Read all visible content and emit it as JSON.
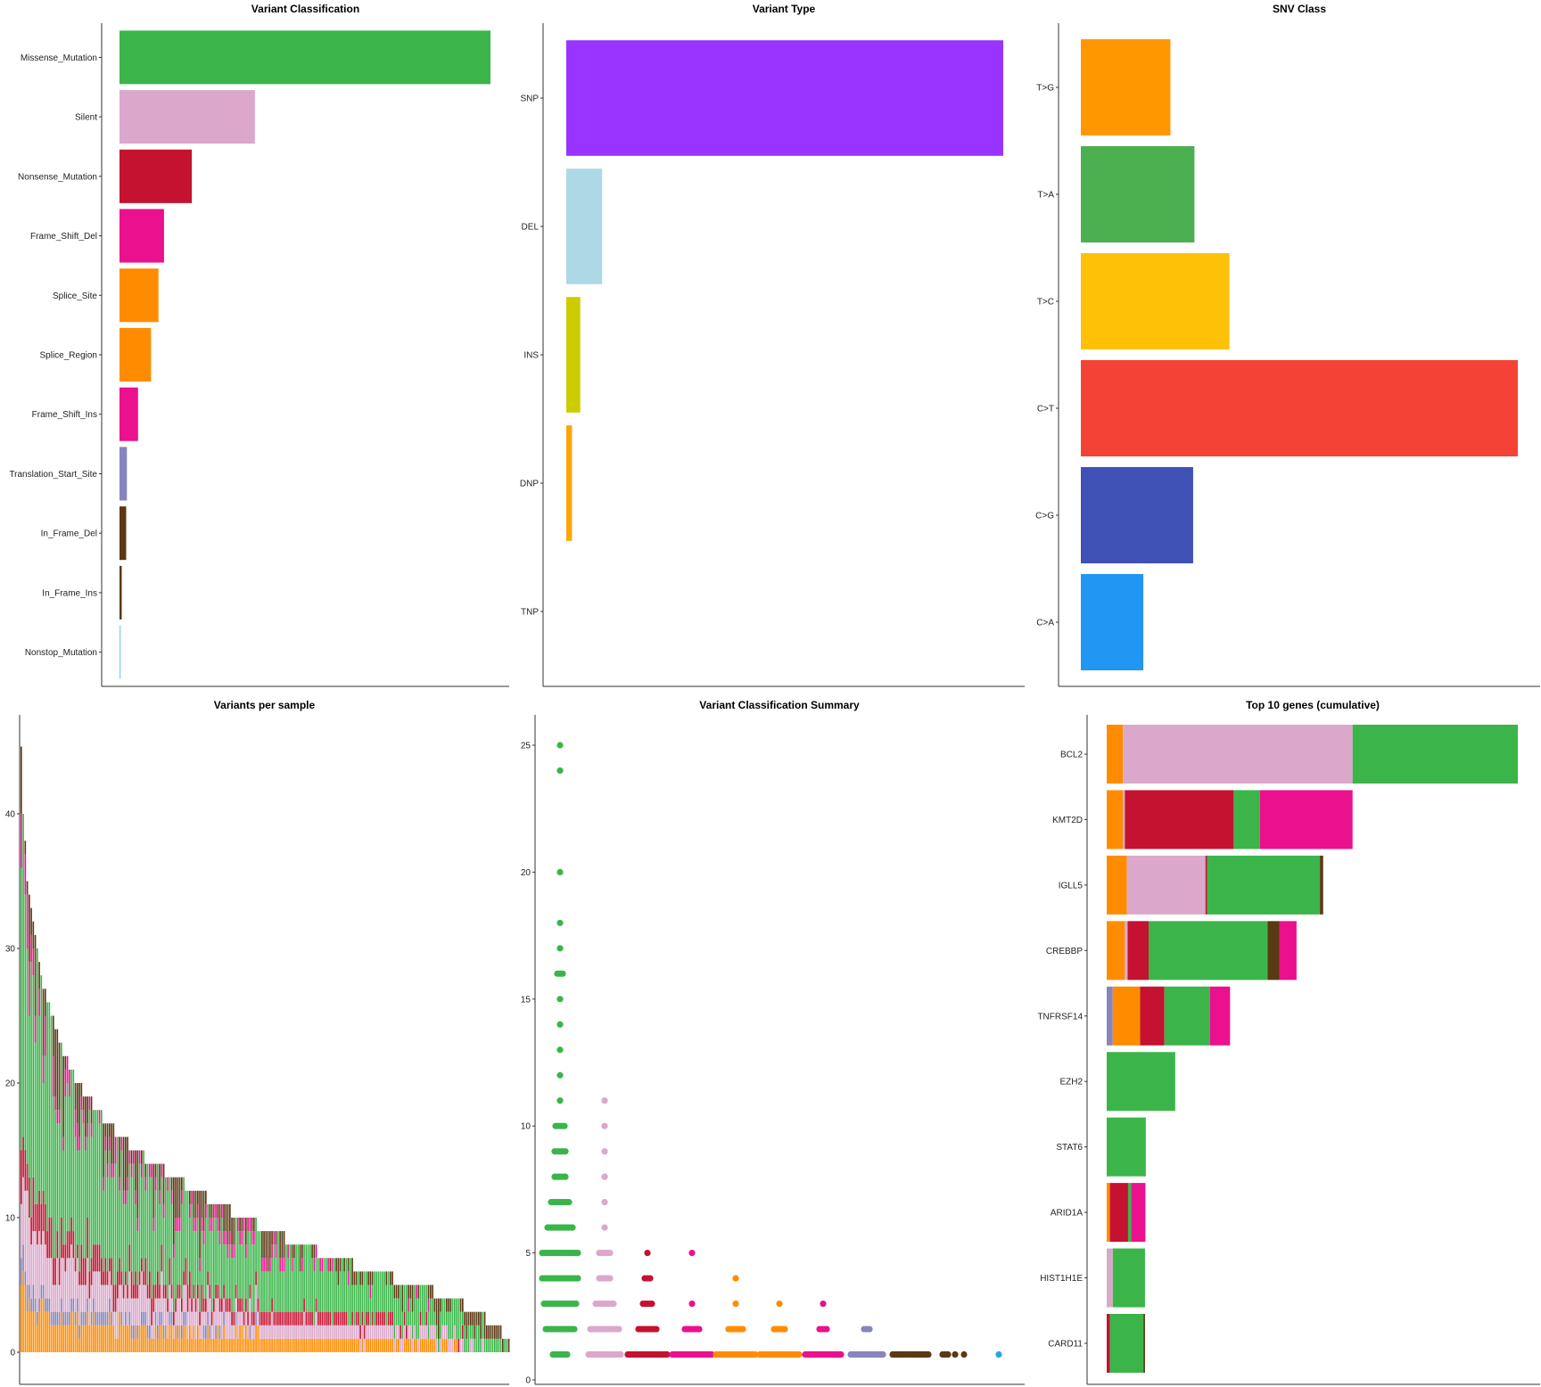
{
  "chart_data": [
    {
      "id": "variant-classification",
      "type": "bar",
      "orientation": "horizontal",
      "title": "Variant Classification",
      "categories": [
        "Missense_Mutation",
        "Silent",
        "Nonsense_Mutation",
        "Frame_Shift_Del",
        "Splice_Site",
        "Splice_Region",
        "Frame_Shift_Ins",
        "Translation_Start_Site",
        "In_Frame_Del",
        "In_Frame_Ins",
        "Nonstop_Mutation"
      ],
      "values": [
        100,
        36.5,
        19.5,
        12,
        10.5,
        8.5,
        5,
        2,
        1.8,
        0.6,
        0.3
      ],
      "colors": [
        "#3BB54A",
        "#DBA8CB",
        "#C41230",
        "#EB108D",
        "#FF8C00",
        "#FF8C00",
        "#EB108D",
        "#8784BE",
        "#5B3913",
        "#5B3913",
        "#7DD2F0"
      ],
      "grid": false
    },
    {
      "id": "variant-type",
      "type": "bar",
      "orientation": "horizontal",
      "title": "Variant Type",
      "categories": [
        "SNP",
        "DEL",
        "INS",
        "DNP",
        "TNP"
      ],
      "values": [
        100,
        8.2,
        3.2,
        1.3,
        0
      ],
      "colors": [
        "#9933FF",
        "#ADD8E6",
        "#CCCC00",
        "#FFA500",
        "#000000"
      ],
      "grid": false
    },
    {
      "id": "snv-class",
      "type": "bar",
      "orientation": "horizontal",
      "title": "SNV Class",
      "categories": [
        "T>G",
        "T>A",
        "T>C",
        "C>T",
        "C>G",
        "C>A"
      ],
      "values": [
        20.5,
        26,
        34,
        100,
        25.7,
        14.3
      ],
      "colors": [
        "#FF9800",
        "#4CAF50",
        "#FFC107",
        "#F44336",
        "#3F51B5",
        "#2196F3"
      ],
      "grid": false
    },
    {
      "id": "variants-per-sample",
      "type": "bar",
      "stacked": true,
      "title": "Variants per sample",
      "ylim": [
        0,
        47
      ],
      "yticks": [
        0,
        10,
        20,
        30,
        40
      ],
      "stack_colors": [
        "#FF8C00",
        "#8784BE",
        "#DBA8CB",
        "#C41230",
        "#3BB54A",
        "#EB108D",
        "#5B3913"
      ],
      "totals": [
        45,
        40,
        38,
        35,
        34,
        33,
        32,
        31,
        30,
        29,
        28,
        27,
        27,
        26,
        26,
        25,
        25,
        24,
        24,
        23,
        23,
        22,
        22,
        22,
        21,
        21,
        21,
        20,
        20,
        20,
        20,
        19,
        19,
        19,
        19,
        19,
        18,
        18,
        18,
        18,
        18,
        17,
        17,
        17,
        17,
        17,
        17,
        16,
        16,
        16,
        16,
        16,
        16,
        16,
        15,
        15,
        15,
        15,
        15,
        15,
        15,
        15,
        14,
        14,
        14,
        14,
        14,
        14,
        14,
        14,
        14,
        14,
        13,
        13,
        13,
        13,
        13,
        13,
        13,
        13,
        13,
        13,
        12,
        12,
        12,
        12,
        12,
        12,
        12,
        12,
        12,
        12,
        12,
        11,
        11,
        11,
        11,
        11,
        11,
        11,
        11,
        11,
        11,
        11,
        11,
        10,
        10,
        10,
        10,
        10,
        10,
        10,
        10,
        10,
        10,
        10,
        10,
        10,
        9,
        9,
        9,
        9,
        9,
        9,
        9,
        9,
        9,
        9,
        9,
        9,
        9,
        9,
        8,
        8,
        8,
        8,
        8,
        8,
        8,
        8,
        8,
        8,
        8,
        8,
        8,
        8,
        8,
        8,
        7,
        7,
        7,
        7,
        7,
        7,
        7,
        7,
        7,
        7,
        7,
        7,
        7,
        7,
        7,
        7,
        7,
        7,
        6,
        6,
        6,
        6,
        6,
        6,
        6,
        6,
        6,
        6,
        6,
        6,
        6,
        6,
        6,
        6,
        6,
        6,
        6,
        6,
        5,
        5,
        5,
        5,
        5,
        5,
        5,
        5,
        5,
        5,
        5,
        5,
        5,
        5,
        5,
        5,
        5,
        5,
        5,
        5,
        4,
        4,
        4,
        4,
        4,
        4,
        4,
        4,
        4,
        4,
        4,
        4,
        4,
        4,
        4,
        3,
        3,
        3,
        3,
        3,
        3,
        3,
        3,
        3,
        3,
        3,
        2,
        2,
        2,
        2,
        2,
        2,
        2,
        2,
        1,
        1,
        1,
        1
      ]
    },
    {
      "id": "variant-classification-summary",
      "type": "scatter",
      "title": "Variant Classification Summary",
      "ylim": [
        0,
        26
      ],
      "yticks": [
        0,
        5,
        10,
        15,
        20,
        25
      ],
      "groups": [
        {
          "color": "#3BB54A",
          "levels": [
            [
              1,
              8
            ],
            [
              2,
              16
            ],
            [
              3,
              18
            ],
            [
              4,
              20
            ],
            [
              5,
              20
            ],
            [
              6,
              14
            ],
            [
              7,
              10
            ],
            [
              8,
              6
            ],
            [
              9,
              6
            ],
            [
              10,
              5
            ],
            [
              11,
              1
            ],
            [
              12,
              1
            ],
            [
              13,
              1
            ],
            [
              14,
              1
            ],
            [
              15,
              1
            ],
            [
              16,
              3
            ],
            [
              17,
              1
            ],
            [
              18,
              1
            ],
            [
              20,
              1
            ],
            [
              24,
              1
            ],
            [
              25,
              1
            ]
          ]
        },
        {
          "color": "#DBA8CB",
          "levels": [
            [
              1,
              18
            ],
            [
              2,
              16
            ],
            [
              3,
              10
            ],
            [
              4,
              6
            ],
            [
              5,
              6
            ],
            [
              6,
              1
            ],
            [
              7,
              1
            ],
            [
              8,
              1
            ],
            [
              9,
              1
            ],
            [
              10,
              1
            ],
            [
              11,
              1
            ]
          ]
        },
        {
          "color": "#C41230",
          "levels": [
            [
              1,
              22
            ],
            [
              2,
              10
            ],
            [
              3,
              5
            ],
            [
              4,
              3
            ],
            [
              5,
              1
            ]
          ]
        },
        {
          "color": "#EB108D",
          "levels": [
            [
              1,
              22
            ],
            [
              2,
              8
            ],
            [
              3,
              1
            ],
            [
              5,
              1
            ]
          ]
        },
        {
          "color": "#FF8C00",
          "levels": [
            [
              1,
              22
            ],
            [
              2,
              8
            ],
            [
              3,
              1
            ],
            [
              4,
              1
            ]
          ]
        },
        {
          "color": "#FF8C00",
          "levels": [
            [
              1,
              22
            ],
            [
              2,
              6
            ],
            [
              3,
              1
            ]
          ]
        },
        {
          "color": "#EB108D",
          "levels": [
            [
              1,
              20
            ],
            [
              2,
              4
            ],
            [
              3,
              1
            ]
          ]
        },
        {
          "color": "#8784BE",
          "levels": [
            [
              1,
              18
            ],
            [
              2,
              3
            ]
          ]
        },
        {
          "color": "#5B3913",
          "levels": [
            [
              1,
              20
            ]
          ]
        },
        {
          "color": "#5B3913",
          "levels": [
            [
              1,
              3
            ]
          ]
        },
        {
          "color": "#5B3913",
          "levels": [
            [
              1,
              1
            ]
          ]
        },
        {
          "color": "#5B3913",
          "levels": [
            [
              1,
              1
            ]
          ]
        },
        {
          "color": "#29A8E0",
          "levels": [
            [
              1,
              1
            ]
          ]
        }
      ]
    },
    {
      "id": "top-10-genes",
      "type": "bar",
      "orientation": "horizontal",
      "stacked": true,
      "title": "Top 10 genes (cumulative)",
      "genes": [
        {
          "name": "BCL2",
          "segments": [
            [
              "#FF8C00",
              4
            ],
            [
              "#DBA8CB",
              57
            ],
            [
              "#3BB54A",
              41
            ]
          ]
        },
        {
          "name": "KMT2D",
          "segments": [
            [
              "#FF8C00",
              4
            ],
            [
              "#DBA8CB",
              0.5
            ],
            [
              "#C41230",
              27
            ],
            [
              "#3BB54A",
              6.5
            ],
            [
              "#EB108D",
              23
            ]
          ]
        },
        {
          "name": "IGLL5",
          "segments": [
            [
              "#FF8C00",
              5
            ],
            [
              "#DBA8CB",
              19.5
            ],
            [
              "#C41230",
              0.4
            ],
            [
              "#3BB54A",
              28
            ],
            [
              "#5B3913",
              0.8
            ]
          ]
        },
        {
          "name": "CREBBP",
          "segments": [
            [
              "#FF8C00",
              4.5
            ],
            [
              "#DBA8CB",
              0.7
            ],
            [
              "#C41230",
              5.2
            ],
            [
              "#3BB54A",
              29.5
            ],
            [
              "#5B3913",
              3
            ],
            [
              "#EB108D",
              4.2
            ]
          ]
        },
        {
          "name": "TNFRSF14",
          "segments": [
            [
              "#8784BE",
              1.5
            ],
            [
              "#FF8C00",
              6.8
            ],
            [
              "#C41230",
              6
            ],
            [
              "#3BB54A",
              11.3
            ],
            [
              "#EB108D",
              5
            ]
          ]
        },
        {
          "name": "EZH2",
          "segments": [
            [
              "#3BB54A",
              17
            ]
          ]
        },
        {
          "name": "STAT6",
          "segments": [
            [
              "#3BB54A",
              9.7
            ]
          ]
        },
        {
          "name": "ARID1A",
          "segments": [
            [
              "#FF8C00",
              0.8
            ],
            [
              "#C41230",
              4.5
            ],
            [
              "#3BB54A",
              0.8
            ],
            [
              "#EB108D",
              3.5
            ]
          ]
        },
        {
          "name": "HIST1H1E",
          "segments": [
            [
              "#DBA8CB",
              1.5
            ],
            [
              "#3BB54A",
              8
            ]
          ]
        },
        {
          "name": "CARD11",
          "segments": [
            [
              "#C41230",
              0.8
            ],
            [
              "#3BB54A",
              8.3
            ],
            [
              "#5B3913",
              0.4
            ]
          ]
        }
      ]
    }
  ]
}
